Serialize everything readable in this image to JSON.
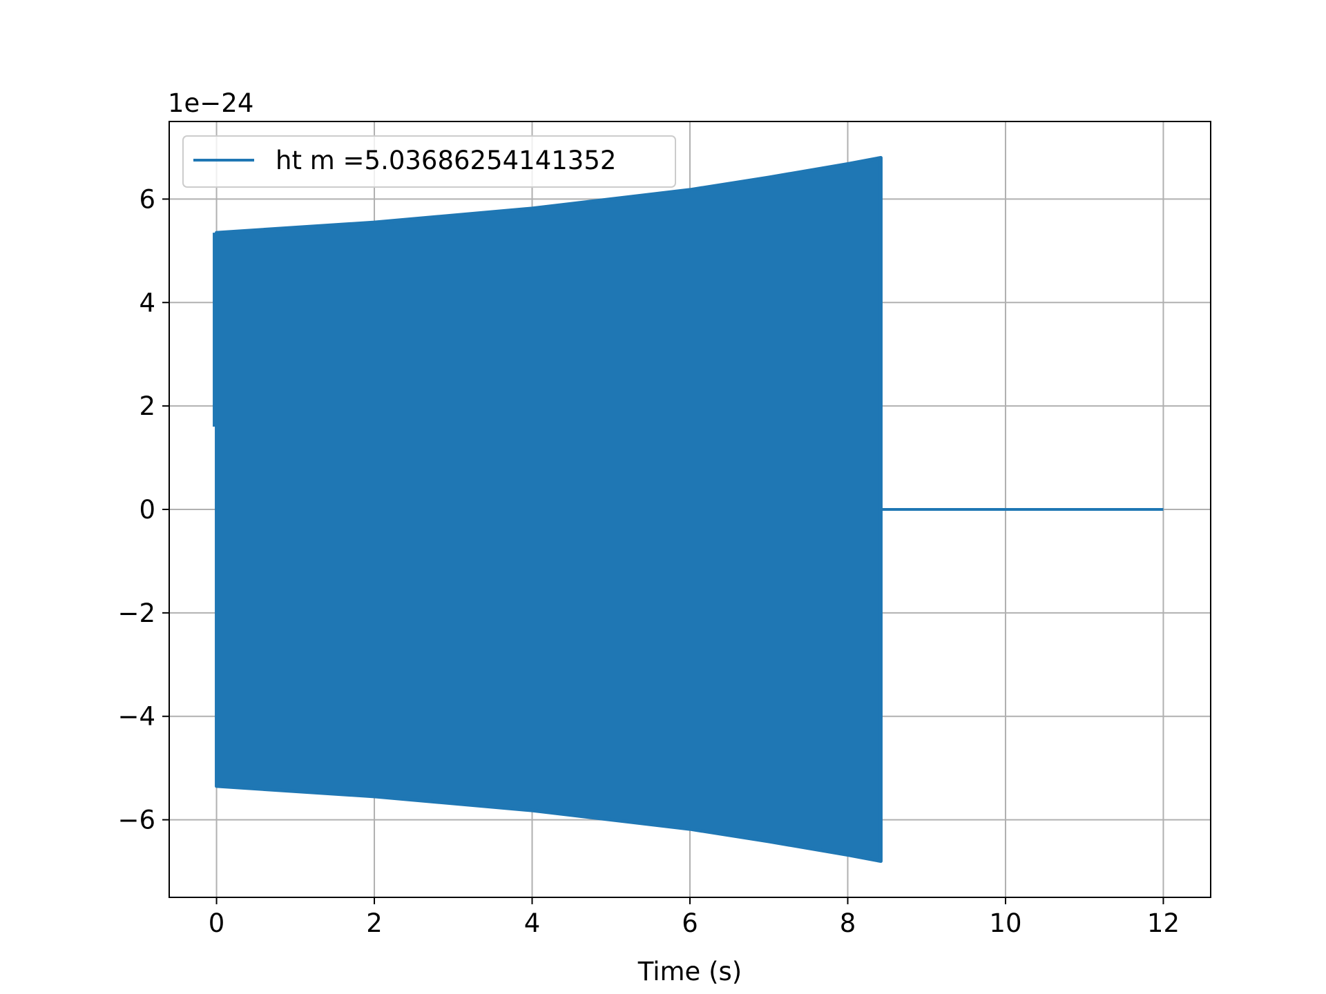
{
  "chart_data": {
    "type": "line",
    "title": "",
    "xlabel": "Time (s)",
    "ylabel": "",
    "y_offset_label": "1e−24",
    "xlim": [
      -0.6,
      12.6
    ],
    "ylim": [
      -7.5,
      7.5
    ],
    "x_ticks": [
      0,
      2,
      4,
      6,
      8,
      10,
      12
    ],
    "x_tick_labels": [
      "0",
      "2",
      "4",
      "6",
      "8",
      "10",
      "12"
    ],
    "y_ticks": [
      -6,
      -4,
      -2,
      0,
      2,
      4,
      6
    ],
    "y_tick_labels": [
      "−6",
      "−4",
      "−2",
      "0",
      "2",
      "4",
      "6"
    ],
    "grid": true,
    "legend_position": "top-left",
    "series": [
      {
        "name": "ht m =5.03686254141352",
        "color": "#1f77b4",
        "signal_end_x": 8.42,
        "x_end": 12.0,
        "envelope": {
          "x": [
            0,
            2,
            4,
            6,
            7,
            8,
            8.42
          ],
          "y_upper": [
            5.35,
            5.55,
            5.82,
            6.18,
            6.42,
            6.68,
            6.8
          ],
          "y_lower": [
            -5.35,
            -5.55,
            -5.82,
            -6.18,
            -6.42,
            -6.68,
            -6.8
          ]
        },
        "start_value": 1.6,
        "tail_value": 0
      }
    ]
  }
}
